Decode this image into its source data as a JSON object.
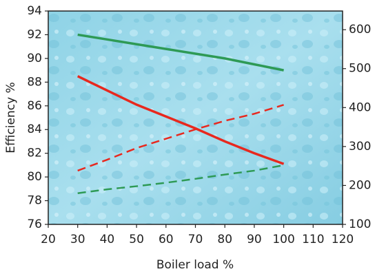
{
  "chart_data": {
    "type": "line",
    "x_label": "Boiler load %",
    "y_label": "Efficiency %",
    "xlim": [
      20,
      120
    ],
    "xticks": [
      20,
      30,
      40,
      50,
      60,
      70,
      80,
      90,
      100,
      110,
      120
    ],
    "ylim": [
      76,
      94
    ],
    "yticks": [
      76,
      78,
      80,
      82,
      84,
      86,
      88,
      90,
      92,
      94
    ],
    "y2lim": [
      100,
      648
    ],
    "y2ticks": [
      100,
      200,
      300,
      400,
      500,
      600
    ],
    "x": [
      30,
      40,
      50,
      60,
      70,
      80,
      90,
      100
    ],
    "series": [
      {
        "color": "#2e9a55",
        "style": "solid",
        "values": [
          92.0,
          91.6,
          91.2,
          90.8,
          90.4,
          90.0,
          89.5,
          89.0
        ]
      },
      {
        "color": "#e8281e",
        "style": "solid",
        "values": [
          88.5,
          87.3,
          86.1,
          85.1,
          84.1,
          83.0,
          82.0,
          81.1
        ]
      },
      {
        "color": "#e8281e",
        "style": "dashed",
        "axis": "y2",
        "values": [
          238,
          266,
          296,
          320,
          344,
          366,
          384,
          407
        ]
      },
      {
        "color": "#2e9a55",
        "style": "dashed",
        "axis": "y2",
        "values": [
          180,
          190,
          198,
          207,
          217,
          228,
          238,
          252
        ]
      }
    ]
  }
}
